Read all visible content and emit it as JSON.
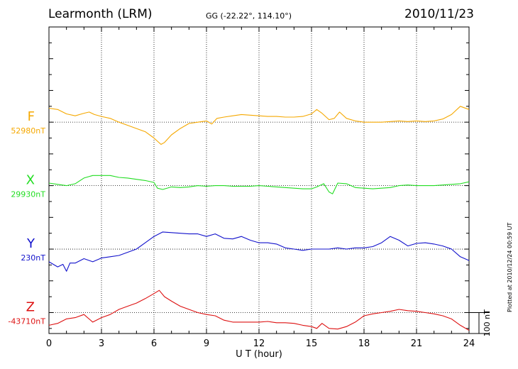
{
  "header": {
    "station": "Learmonth (LRM)",
    "coords": "GG (-22.22°, 114.10°)",
    "date": "2010/11/23"
  },
  "plotted_note": "Plotted at 2010/12/24 00:59 UT",
  "colors": {
    "F": "#f5a800",
    "X": "#22dd22",
    "Y": "#1111cc",
    "Z": "#dd1111"
  },
  "chart_data": {
    "type": "line",
    "xlabel": "U T (hour)",
    "xlim": [
      0,
      24
    ],
    "xticks": [
      "0",
      "3",
      "6",
      "9",
      "12",
      "15",
      "18",
      "21",
      "24"
    ],
    "ylim_nT": [
      -333,
      150
    ],
    "scale_bar_label": "100 nT",
    "channels": [
      {
        "name": "F",
        "baseline_label": "52980nT",
        "offset_nT": 0
      },
      {
        "name": "X",
        "baseline_label": "29930nT",
        "offset_nT": -100
      },
      {
        "name": "Y",
        "baseline_label": "230nT",
        "offset_nT": -200
      },
      {
        "name": "Z",
        "baseline_label": "-43710nT",
        "offset_nT": -300
      }
    ],
    "series": [
      {
        "name": "F",
        "x": [
          0,
          0.5,
          1,
          1.5,
          2,
          2.3,
          2.6,
          3,
          3.5,
          4,
          4.5,
          5,
          5.5,
          6,
          6.2,
          6.4,
          6.6,
          7,
          7.5,
          8,
          8.5,
          9,
          9.3,
          9.6,
          10,
          10.5,
          11,
          11.5,
          12,
          12.5,
          13,
          13.5,
          14,
          14.5,
          15,
          15.3,
          15.6,
          16,
          16.3,
          16.6,
          17,
          17.5,
          18,
          18.5,
          19,
          19.5,
          20,
          20.5,
          21,
          21.5,
          22,
          22.5,
          23,
          23.5,
          24
        ],
        "values": [
          22,
          20,
          13,
          10,
          14,
          16,
          12,
          9,
          6,
          0,
          -5,
          -10,
          -15,
          -25,
          -30,
          -35,
          -32,
          -20,
          -10,
          -2,
          0,
          2,
          -3,
          6,
          8,
          10,
          12,
          11,
          10,
          9,
          9,
          8,
          8,
          9,
          13,
          20,
          14,
          4,
          6,
          16,
          6,
          2,
          0,
          0,
          0,
          1,
          2,
          1,
          2,
          1,
          2,
          5,
          12,
          25,
          20
        ]
      },
      {
        "name": "X",
        "x": [
          0,
          0.5,
          1,
          1.5,
          2,
          2.5,
          3,
          3.5,
          4,
          4.5,
          5,
          5.5,
          6,
          6.2,
          6.5,
          7,
          7.5,
          8,
          8.5,
          9,
          9.5,
          10,
          10.5,
          11,
          11.5,
          12,
          12.5,
          13,
          13.5,
          14,
          14.5,
          15,
          15.3,
          15.7,
          16,
          16.2,
          16.5,
          17,
          17.5,
          18,
          18.5,
          19,
          19.5,
          20,
          20.5,
          21,
          21.5,
          22,
          22.5,
          23,
          23.5,
          24
        ],
        "values": [
          4,
          2,
          0,
          3,
          12,
          16,
          16,
          16,
          13,
          12,
          10,
          8,
          5,
          -4,
          -6,
          -2,
          -3,
          -2,
          0,
          -1,
          0,
          0,
          -1,
          -1,
          -1,
          0,
          -1,
          -2,
          -3,
          -4,
          -5,
          -5,
          -2,
          3,
          -10,
          -13,
          4,
          3,
          -3,
          -4,
          -5,
          -4,
          -3,
          0,
          1,
          0,
          0,
          0,
          1,
          2,
          3,
          6
        ]
      },
      {
        "name": "Y",
        "x": [
          0,
          0.5,
          0.8,
          1,
          1.2,
          1.5,
          2,
          2.5,
          3,
          3.5,
          4,
          4.5,
          5,
          5.5,
          6,
          6.5,
          7,
          7.5,
          8,
          8.5,
          9,
          9.5,
          10,
          10.5,
          11,
          11.5,
          12,
          12.5,
          13,
          13.5,
          14,
          14.5,
          15,
          15.5,
          16,
          16.5,
          17,
          17.5,
          18,
          18.5,
          19,
          19.5,
          20,
          20.5,
          21,
          21.5,
          22,
          22.5,
          23,
          23.5,
          24
        ],
        "values": [
          -20,
          -28,
          -24,
          -35,
          -22,
          -22,
          -15,
          -20,
          -14,
          -12,
          -10,
          -5,
          0,
          10,
          20,
          27,
          26,
          25,
          24,
          24,
          20,
          24,
          17,
          16,
          20,
          14,
          10,
          10,
          8,
          2,
          0,
          -2,
          0,
          0,
          0,
          2,
          0,
          2,
          2,
          4,
          10,
          20,
          14,
          5,
          9,
          10,
          8,
          5,
          0,
          -12,
          -18
        ]
      },
      {
        "name": "Z",
        "x": [
          0,
          0.5,
          1,
          1.5,
          2,
          2.5,
          3,
          3.5,
          4,
          4.5,
          5,
          5.5,
          6,
          6.3,
          6.6,
          7,
          7.5,
          8,
          8.5,
          9,
          9.5,
          10,
          10.5,
          11,
          11.5,
          12,
          12.5,
          13,
          13.5,
          14,
          14.5,
          15,
          15.3,
          15.6,
          16,
          16.5,
          17,
          17.5,
          18,
          18.5,
          19,
          19.5,
          20,
          20.5,
          21,
          21.5,
          22,
          22.5,
          23,
          23.5,
          24
        ],
        "values": [
          -20,
          -17,
          -10,
          -8,
          -3,
          -15,
          -8,
          -3,
          5,
          10,
          15,
          22,
          30,
          35,
          25,
          18,
          10,
          5,
          0,
          -3,
          -5,
          -12,
          -15,
          -15,
          -15,
          -15,
          -14,
          -16,
          -16,
          -17,
          -20,
          -22,
          -25,
          -17,
          -25,
          -26,
          -22,
          -15,
          -5,
          -2,
          0,
          2,
          5,
          3,
          2,
          0,
          -2,
          -5,
          -10,
          -20,
          -28
        ]
      }
    ]
  }
}
